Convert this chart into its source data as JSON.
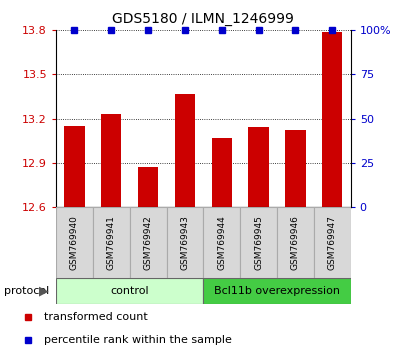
{
  "title": "GDS5180 / ILMN_1246999",
  "samples": [
    "GSM769940",
    "GSM769941",
    "GSM769942",
    "GSM769943",
    "GSM769944",
    "GSM769945",
    "GSM769946",
    "GSM769947"
  ],
  "red_values": [
    13.15,
    13.23,
    12.87,
    13.37,
    13.07,
    13.14,
    13.12,
    13.79
  ],
  "blue_values": [
    100,
    100,
    100,
    100,
    100,
    100,
    100,
    100
  ],
  "ylim_left": [
    12.6,
    13.8
  ],
  "ylim_right": [
    0,
    100
  ],
  "yticks_left": [
    12.6,
    12.9,
    13.2,
    13.5,
    13.8
  ],
  "yticks_right": [
    0,
    25,
    50,
    75,
    100
  ],
  "bar_color": "#cc0000",
  "dot_color": "#0000cc",
  "bar_width": 0.55,
  "control_label": "control",
  "overexp_label": "Bcl11b overexpression",
  "control_color": "#ccffcc",
  "overexp_color": "#44cc44",
  "protocol_label": "protocol",
  "legend_red": "transformed count",
  "legend_blue": "percentile rank within the sample",
  "tick_label_color_left": "#cc0000",
  "tick_label_color_right": "#0000cc"
}
